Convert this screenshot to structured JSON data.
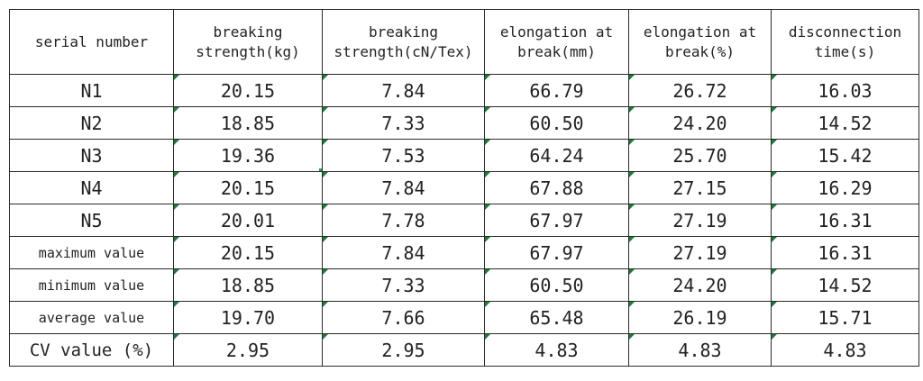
{
  "headers": [
    "serial number",
    "breaking\nstrength(kg)",
    "breaking\nstrength(cN/Tex)",
    "elongation at\nbreak(mm)",
    "elongation at\nbreak(%)",
    "disconnection\ntime(s)"
  ],
  "rows": [
    {
      "label": "N1",
      "values": [
        "20.15",
        "7.84",
        "66.79",
        "26.72",
        "16.03"
      ]
    },
    {
      "label": "N2",
      "values": [
        "18.85",
        "7.33",
        "60.50",
        "24.20",
        "14.52"
      ]
    },
    {
      "label": "N3",
      "values": [
        "19.36",
        "7.53",
        "64.24",
        "25.70",
        "15.42"
      ]
    },
    {
      "label": "N4",
      "values": [
        "20.15",
        "7.84",
        "67.88",
        "27.15",
        "16.29"
      ]
    },
    {
      "label": "N5",
      "values": [
        "20.01",
        "7.78",
        "67.97",
        "27.19",
        "16.31"
      ]
    },
    {
      "label": "maximum value",
      "values": [
        "20.15",
        "7.84",
        "67.97",
        "27.19",
        "16.31"
      ]
    },
    {
      "label": "minimum value",
      "values": [
        "18.85",
        "7.33",
        "60.50",
        "24.20",
        "14.52"
      ]
    },
    {
      "label": "average value",
      "values": [
        "19.70",
        "7.66",
        "65.48",
        "26.19",
        "15.71"
      ]
    },
    {
      "label": "CV value (%)",
      "values": [
        "2.95",
        "2.95",
        "4.83",
        "4.83",
        "4.83"
      ]
    }
  ],
  "selection": {
    "row": 3,
    "col": 2
  },
  "error_indicator": {
    "symbol": "!",
    "icon": "warning-circle-icon",
    "color": "#f0a032"
  },
  "colors": {
    "selection": "#21a366",
    "error_triangle": "#1f7a3a",
    "border": "#2b2b2b"
  }
}
